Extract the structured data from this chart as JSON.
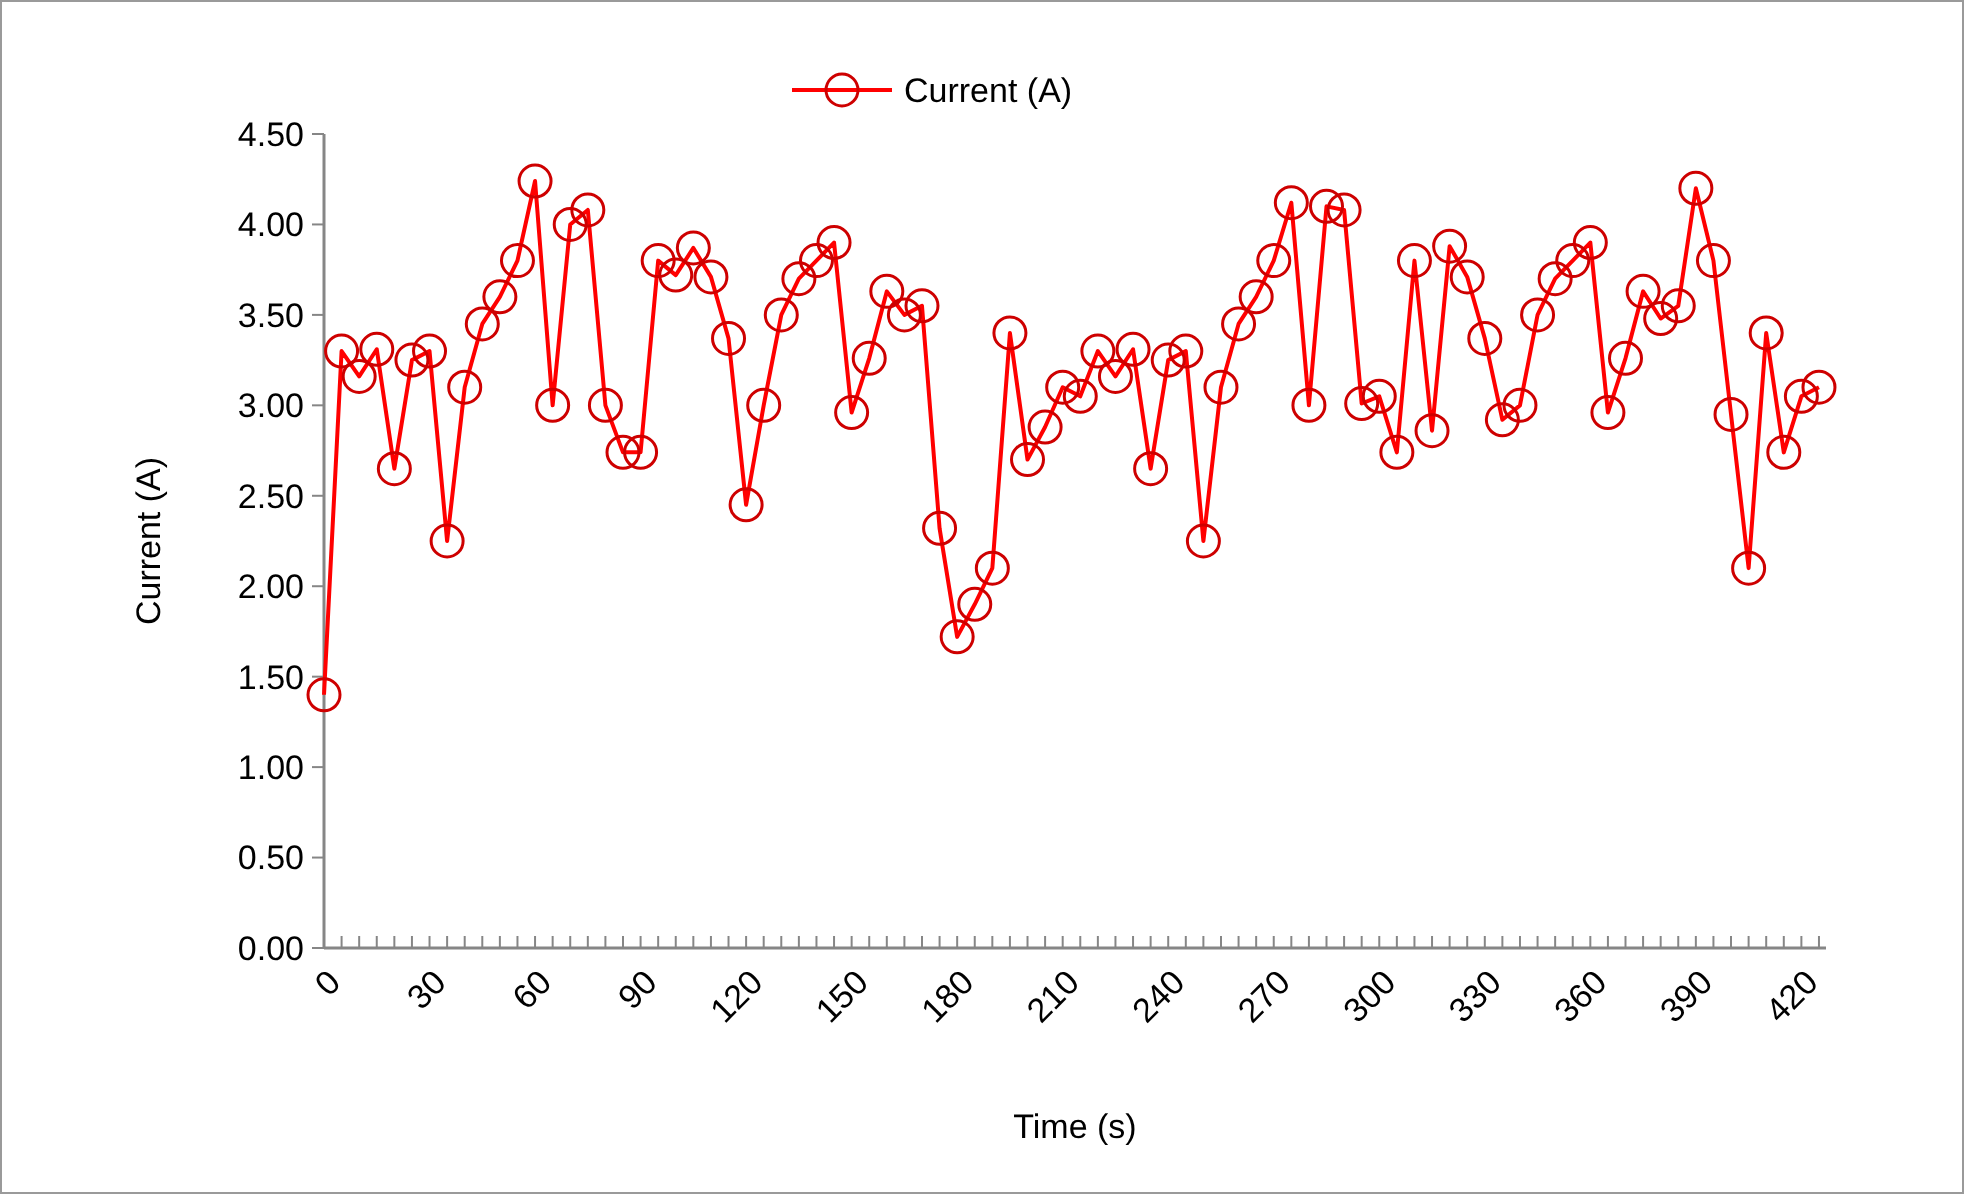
{
  "chart_data": {
    "type": "line",
    "xlabel": "Time (s)",
    "ylabel": "Current (A)",
    "legend": "top",
    "marker": "circle",
    "line_style": "solid",
    "grid": false,
    "x": [
      0,
      5,
      10,
      15,
      20,
      25,
      30,
      35,
      40,
      45,
      50,
      55,
      60,
      65,
      70,
      75,
      80,
      85,
      90,
      95,
      100,
      105,
      110,
      115,
      120,
      125,
      130,
      135,
      140,
      145,
      150,
      155,
      160,
      165,
      170,
      175,
      180,
      185,
      190,
      195,
      200,
      205,
      210,
      215,
      220,
      225,
      230,
      235,
      240,
      245,
      250,
      255,
      260,
      265,
      270,
      275,
      280,
      285,
      290,
      295,
      300,
      305,
      310,
      315,
      320,
      325,
      330,
      335,
      340,
      345,
      350,
      355,
      360,
      365,
      370,
      375,
      380,
      385,
      390,
      395,
      400,
      405,
      410,
      415,
      420,
      425
    ],
    "xlim": [
      0,
      427
    ],
    "xticks": [
      0,
      {
        "value": 5,
        "label": null
      },
      {
        "value": 10,
        "label": null
      },
      {
        "value": 15,
        "label": null
      },
      {
        "value": 20,
        "label": null
      },
      {
        "value": 25,
        "label": null
      },
      30,
      {
        "value": 35,
        "label": null
      },
      {
        "value": 40,
        "label": null
      },
      {
        "value": 45,
        "label": null
      },
      {
        "value": 50,
        "label": null
      },
      {
        "value": 55,
        "label": null
      },
      60,
      {
        "value": 65,
        "label": null
      },
      {
        "value": 70,
        "label": null
      },
      {
        "value": 75,
        "label": null
      },
      {
        "value": 80,
        "label": null
      },
      {
        "value": 85,
        "label": null
      },
      90,
      {
        "value": 95,
        "label": null
      },
      {
        "value": 100,
        "label": null
      },
      {
        "value": 105,
        "label": null
      },
      {
        "value": 110,
        "label": null
      },
      {
        "value": 115,
        "label": null
      },
      120,
      {
        "value": 125,
        "label": null
      },
      {
        "value": 130,
        "label": null
      },
      {
        "value": 135,
        "label": null
      },
      {
        "value": 140,
        "label": null
      },
      {
        "value": 145,
        "label": null
      },
      150,
      {
        "value": 155,
        "label": null
      },
      {
        "value": 160,
        "label": null
      },
      {
        "value": 165,
        "label": null
      },
      {
        "value": 170,
        "label": null
      },
      {
        "value": 175,
        "label": null
      },
      180,
      {
        "value": 185,
        "label": null
      },
      {
        "value": 190,
        "label": null
      },
      {
        "value": 195,
        "label": null
      },
      {
        "value": 200,
        "label": null
      },
      {
        "value": 205,
        "label": null
      },
      210,
      {
        "value": 215,
        "label": null
      },
      {
        "value": 220,
        "label": null
      },
      {
        "value": 225,
        "label": null
      },
      {
        "value": 230,
        "label": null
      },
      {
        "value": 235,
        "label": null
      },
      240,
      {
        "value": 245,
        "label": null
      },
      {
        "value": 250,
        "label": null
      },
      {
        "value": 255,
        "label": null
      },
      {
        "value": 260,
        "label": null
      },
      {
        "value": 265,
        "label": null
      },
      270,
      {
        "value": 275,
        "label": null
      },
      {
        "value": 280,
        "label": null
      },
      {
        "value": 285,
        "label": null
      },
      {
        "value": 290,
        "label": null
      },
      {
        "value": 295,
        "label": null
      },
      300,
      {
        "value": 305,
        "label": null
      },
      {
        "value": 310,
        "label": null
      },
      {
        "value": 315,
        "label": null
      },
      {
        "value": 320,
        "label": null
      },
      {
        "value": 325,
        "label": null
      },
      330,
      {
        "value": 335,
        "label": null
      },
      {
        "value": 340,
        "label": null
      },
      {
        "value": 345,
        "label": null
      },
      {
        "value": 350,
        "label": null
      },
      {
        "value": 355,
        "label": null
      },
      360,
      {
        "value": 365,
        "label": null
      },
      {
        "value": 370,
        "label": null
      },
      {
        "value": 375,
        "label": null
      },
      {
        "value": 380,
        "label": null
      },
      {
        "value": 385,
        "label": null
      },
      390,
      {
        "value": 395,
        "label": null
      },
      {
        "value": 400,
        "label": null
      },
      {
        "value": 405,
        "label": null
      },
      {
        "value": 410,
        "label": null
      },
      {
        "value": 415,
        "label": null
      },
      420,
      {
        "value": 425,
        "label": null
      }
    ],
    "ylim": [
      0,
      4.5
    ],
    "yticks": [
      {
        "value": 0,
        "label": "0.00"
      },
      {
        "value": 0.5,
        "label": "0.50"
      },
      {
        "value": 1,
        "label": "1.00"
      },
      {
        "value": 1.5,
        "label": "1.50"
      },
      {
        "value": 2,
        "label": "2.00"
      },
      {
        "value": 2.5,
        "label": "2.50"
      },
      {
        "value": 3,
        "label": "3.00"
      },
      {
        "value": 3.5,
        "label": "3.50"
      },
      {
        "value": 4,
        "label": "4.00"
      },
      {
        "value": 4.5,
        "label": "4.50"
      }
    ],
    "series": [
      {
        "name": "Current (A)",
        "color": "#ff0000",
        "values": [
          1.4,
          3.3,
          3.16,
          3.31,
          2.65,
          3.25,
          3.3,
          2.25,
          3.1,
          3.45,
          3.6,
          3.8,
          4.24,
          3.0,
          4.0,
          4.08,
          3.0,
          2.74,
          2.74,
          3.8,
          3.72,
          3.87,
          3.71,
          3.37,
          2.45,
          3.0,
          3.5,
          3.7,
          3.8,
          3.9,
          2.96,
          3.26,
          3.63,
          3.5,
          3.55,
          2.32,
          1.72,
          1.9,
          2.1,
          3.4,
          2.7,
          2.88,
          3.1,
          3.05,
          3.3,
          3.16,
          3.31,
          2.65,
          3.25,
          3.3,
          2.25,
          3.1,
          3.45,
          3.6,
          3.8,
          4.12,
          3.0,
          4.1,
          4.08,
          3.01,
          3.05,
          2.74,
          3.8,
          2.86,
          3.88,
          3.71,
          3.37,
          2.92,
          3.0,
          3.5,
          3.7,
          3.8,
          3.9,
          2.96,
          3.26,
          3.63,
          3.48,
          3.55,
          4.2,
          3.8,
          2.95,
          2.1,
          3.4,
          2.74,
          3.05,
          3.1
        ]
      }
    ]
  }
}
